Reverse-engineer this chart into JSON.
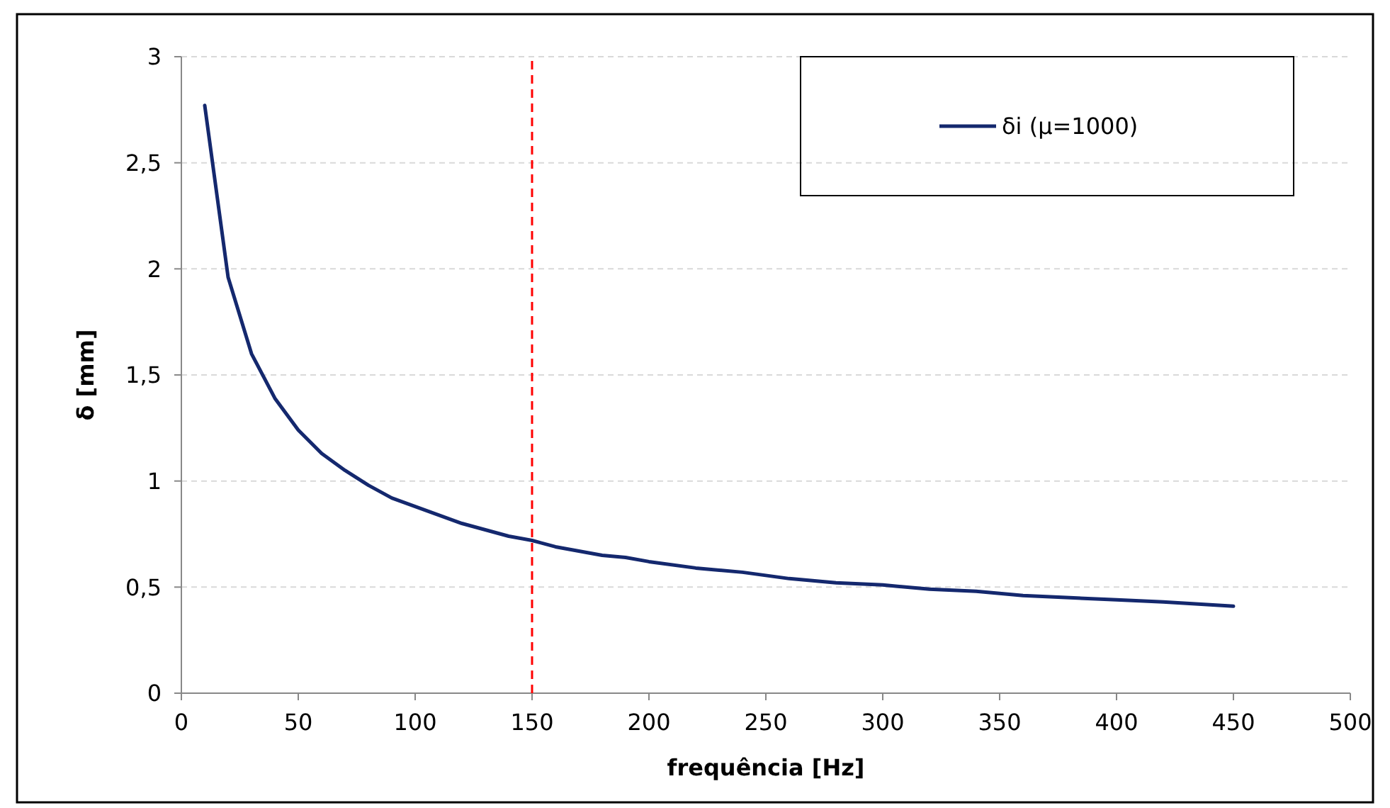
{
  "chart_data": {
    "type": "line",
    "xlabel": "frequência [Hz]",
    "ylabel": "δ [mm]",
    "x": [
      10,
      20,
      30,
      40,
      50,
      60,
      70,
      80,
      90,
      100,
      110,
      120,
      130,
      140,
      150,
      160,
      170,
      180,
      190,
      200,
      220,
      240,
      260,
      280,
      300,
      320,
      340,
      360,
      380,
      400,
      420,
      450
    ],
    "series": [
      {
        "name": "δi (μ=1000)",
        "color": "#14286e",
        "values": [
          2.77,
          1.96,
          1.6,
          1.39,
          1.24,
          1.13,
          1.05,
          0.98,
          0.92,
          0.88,
          0.84,
          0.8,
          0.77,
          0.74,
          0.72,
          0.69,
          0.67,
          0.65,
          0.64,
          0.62,
          0.59,
          0.57,
          0.54,
          0.52,
          0.51,
          0.49,
          0.48,
          0.46,
          0.45,
          0.44,
          0.43,
          0.41
        ]
      }
    ],
    "xlim": [
      0,
      500
    ],
    "xticks": [
      0,
      50,
      100,
      150,
      200,
      250,
      300,
      350,
      400,
      450,
      500
    ],
    "ylim": [
      0,
      3
    ],
    "yticks": [
      0,
      {
        "value": 0.5,
        "label": "0,5"
      },
      1,
      {
        "value": 1.5,
        "label": "1,5"
      },
      2,
      {
        "value": 2.5,
        "label": "2,5"
      },
      3
    ],
    "grid": "y",
    "legend": "top right",
    "marker": "none",
    "line_style": "solid",
    "ref_lines": [
      {
        "axis": "x",
        "value": 150,
        "color": "#ff0000",
        "line_style": "dashed"
      }
    ]
  }
}
